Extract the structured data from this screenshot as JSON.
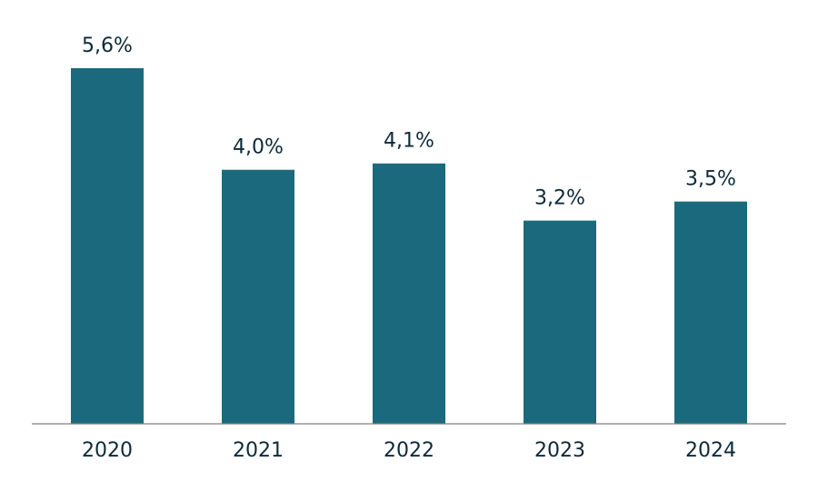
{
  "chart_data": {
    "type": "bar",
    "categories": [
      "2020",
      "2021",
      "2022",
      "2023",
      "2024"
    ],
    "values": [
      5.6,
      4.0,
      4.1,
      3.2,
      3.5
    ],
    "value_labels": [
      "5,6%",
      "4,0%",
      "4,1%",
      "3,2%",
      "3,5%"
    ],
    "title": "",
    "xlabel": "",
    "ylabel": "",
    "ylim": [
      0,
      5.6
    ],
    "grid": false,
    "legend": "none",
    "axis_visible": false,
    "colors": {
      "bar": "#1b697c",
      "label": "#0d2a3a",
      "baseline": "#808080"
    }
  }
}
